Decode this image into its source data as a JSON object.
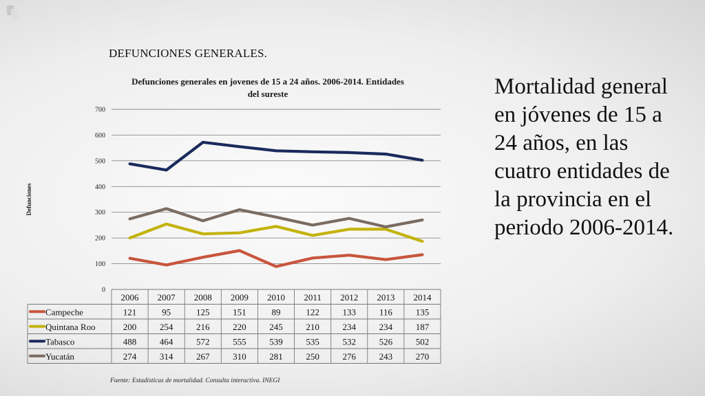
{
  "slide": {
    "heading": "DEFUNCIONES GENERALES.",
    "side_text": " Mortalidad general en jóvenes de 15 a 24 años, en las cuatro entidades de la provincia en el periodo 2006-2014.",
    "footnote": "Fuente:  Estadísticas de mortalidad. Consulta interactiva. INEGI"
  },
  "chart_data": {
    "type": "line",
    "title": "Defunciones generales en jovenes de 15 a 24 años. 2006-2014.  Entidades del sureste",
    "title_lines": [
      "Defunciones generales en jovenes de 15 a 24 años. 2006-2014.  Entidades",
      "del sureste"
    ],
    "ylabel": "Defunciones",
    "xlabel": "",
    "ylim": [
      0,
      700
    ],
    "yticks": [
      0,
      100,
      200,
      300,
      400,
      500,
      600,
      700
    ],
    "grid": true,
    "legend": "data table below chart",
    "categories": [
      "2006",
      "2007",
      "2008",
      "2009",
      "2010",
      "2011",
      "2012",
      "2013",
      "2014"
    ],
    "series": [
      {
        "name": "Campeche",
        "color": "#c8553d",
        "values": [
          121,
          95,
          125,
          151,
          89,
          122,
          133,
          116,
          135
        ]
      },
      {
        "name": "Quintana Roo",
        "color": "#c3b30c",
        "values": [
          200,
          254,
          216,
          220,
          245,
          210,
          234,
          234,
          187
        ]
      },
      {
        "name": "Tabasco",
        "color": "#1b2a5c",
        "values": [
          488,
          464,
          572,
          555,
          539,
          535,
          532,
          526,
          502
        ]
      },
      {
        "name": "Yucatán",
        "color": "#7a6c62",
        "values": [
          274,
          314,
          267,
          310,
          281,
          250,
          276,
          243,
          270
        ]
      }
    ]
  }
}
